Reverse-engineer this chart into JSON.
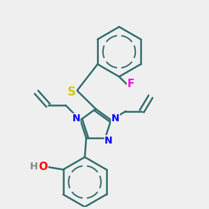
{
  "bg_color": "#efefef",
  "bond_color": "#2d6b6b",
  "bond_width": 1.8,
  "N_color": "#0000ff",
  "O_color": "#ff0000",
  "S_color": "#cccc00",
  "F_color": "#ff00ee",
  "H_color": "#888888",
  "font_size": 10,
  "figsize": [
    3.0,
    3.0
  ],
  "dpi": 100,
  "xlim": [
    -3.5,
    3.5
  ],
  "ylim": [
    -3.5,
    3.5
  ]
}
